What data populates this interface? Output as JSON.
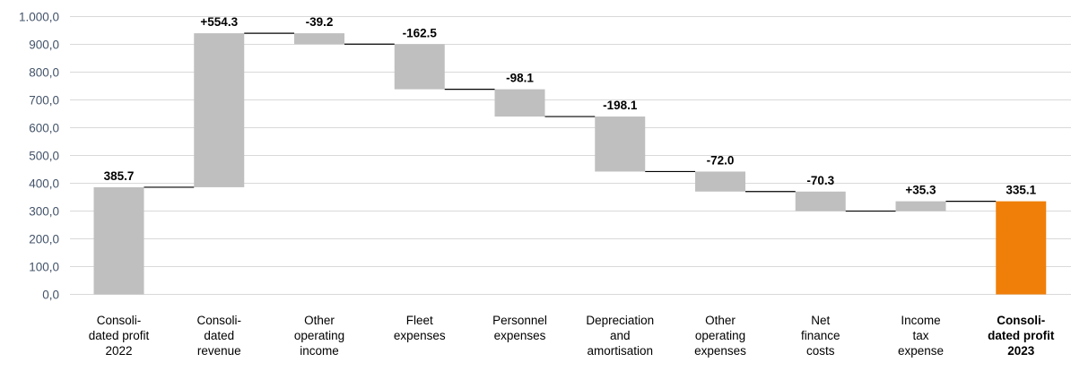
{
  "chart_data": {
    "type": "bar",
    "subtype": "waterfall",
    "title": "",
    "xlabel": "",
    "ylabel": "",
    "ylim": [
      0,
      1000
    ],
    "yticks": [
      "0,0",
      "100,0",
      "200,0",
      "300,0",
      "400,0",
      "500,0",
      "600,0",
      "700,0",
      "800,0",
      "900,0",
      "1.000,0"
    ],
    "grid": true,
    "legend": "none",
    "colors": {
      "bar": "#bfbfbf",
      "highlight": "#f07f09",
      "grid": "#d9d9d9",
      "axis_text": "#44546a",
      "connector": "#000000"
    },
    "categories": [
      {
        "lines": [
          "Consoli-",
          "dated profit",
          "2022"
        ],
        "bold": false
      },
      {
        "lines": [
          "Consoli-",
          "dated",
          "revenue"
        ],
        "bold": false
      },
      {
        "lines": [
          "Other",
          "operating",
          "income"
        ],
        "bold": false
      },
      {
        "lines": [
          "Fleet",
          "expenses"
        ],
        "bold": false
      },
      {
        "lines": [
          "Personnel",
          "expenses"
        ],
        "bold": false
      },
      {
        "lines": [
          "Depreciation",
          "and",
          "amortisation"
        ],
        "bold": false
      },
      {
        "lines": [
          "Other",
          "operating",
          "expenses"
        ],
        "bold": false
      },
      {
        "lines": [
          "Net",
          "finance",
          "costs"
        ],
        "bold": false
      },
      {
        "lines": [
          "Income",
          "tax",
          "expense"
        ],
        "bold": false
      },
      {
        "lines": [
          "Consoli-",
          "dated profit",
          "2023"
        ],
        "bold": true
      }
    ],
    "bars": [
      {
        "start": 0,
        "end": 385.7,
        "label": "385.7",
        "kind": "total"
      },
      {
        "start": 385.7,
        "end": 940.0,
        "label": "+554.3",
        "kind": "delta"
      },
      {
        "start": 940.0,
        "end": 900.8,
        "label": "-39.2",
        "kind": "delta"
      },
      {
        "start": 900.8,
        "end": 738.3,
        "label": "-162.5",
        "kind": "delta"
      },
      {
        "start": 738.3,
        "end": 640.2,
        "label": "-98.1",
        "kind": "delta"
      },
      {
        "start": 640.2,
        "end": 442.1,
        "label": "-198.1",
        "kind": "delta"
      },
      {
        "start": 442.1,
        "end": 370.1,
        "label": "-72.0",
        "kind": "delta"
      },
      {
        "start": 370.1,
        "end": 299.8,
        "label": "-70.3",
        "kind": "delta"
      },
      {
        "start": 299.8,
        "end": 335.1,
        "label": "+35.3",
        "kind": "delta"
      },
      {
        "start": 0,
        "end": 335.1,
        "label": "335.1",
        "kind": "total-highlight"
      }
    ]
  }
}
